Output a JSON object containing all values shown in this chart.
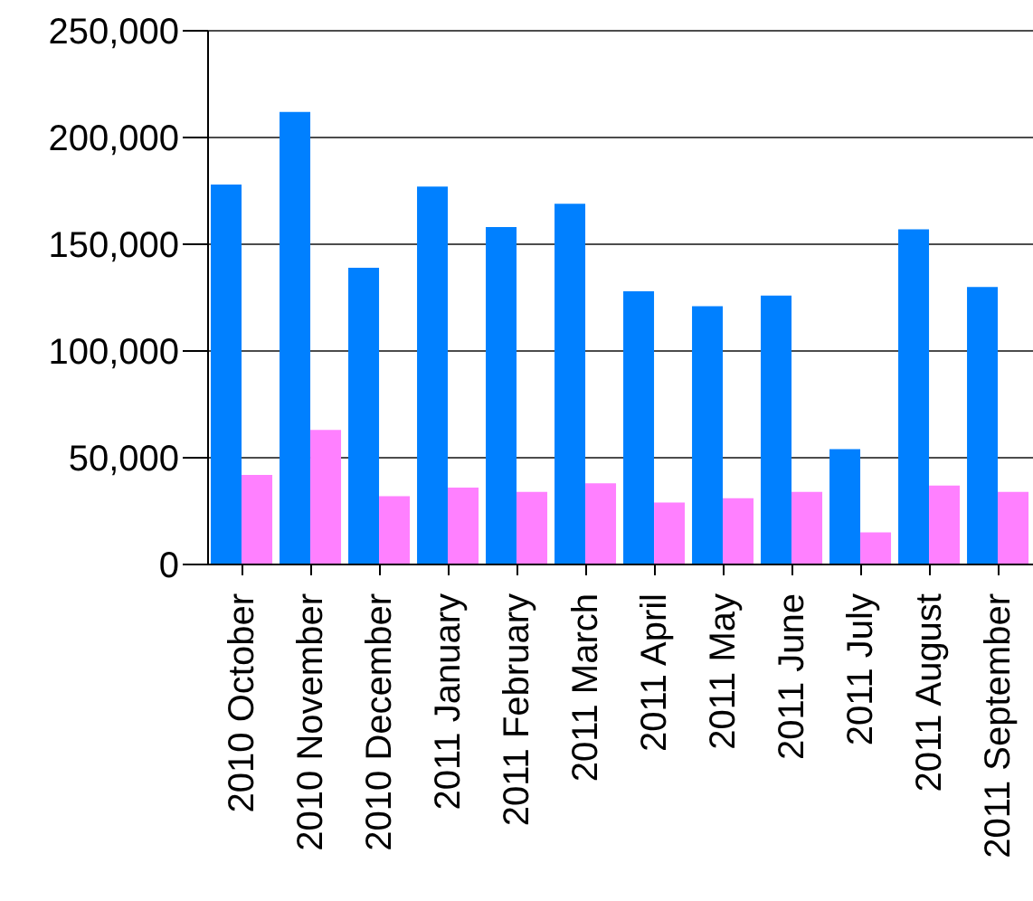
{
  "chart_data": {
    "type": "bar",
    "categories": [
      "2010 October",
      "2010 November",
      "2010 December",
      "2011 January",
      "2011 February",
      "2011 March",
      "2011 April",
      "2011 May",
      "2011 June",
      "2011 July",
      "2011 August",
      "2011 September"
    ],
    "series": [
      {
        "color": "#0080ff",
        "values": [
          178000,
          212000,
          139000,
          177000,
          158000,
          169000,
          128000,
          121000,
          126000,
          54000,
          157000,
          130000
        ]
      },
      {
        "color": "#ff80ff",
        "values": [
          42000,
          63000,
          32000,
          36000,
          34000,
          38000,
          29000,
          31000,
          34000,
          15000,
          37000,
          34000
        ]
      }
    ],
    "ylim": [
      0,
      250000
    ],
    "yticks": [
      0,
      {
        "value": 50000,
        "label": "50,000"
      },
      {
        "value": 100000,
        "label": "100,000"
      },
      {
        "value": 150000,
        "label": "150,000"
      },
      {
        "value": 200000,
        "label": "200,000"
      },
      {
        "value": 250000,
        "label": "250,000"
      }
    ],
    "grid": "y",
    "legend": false
  }
}
